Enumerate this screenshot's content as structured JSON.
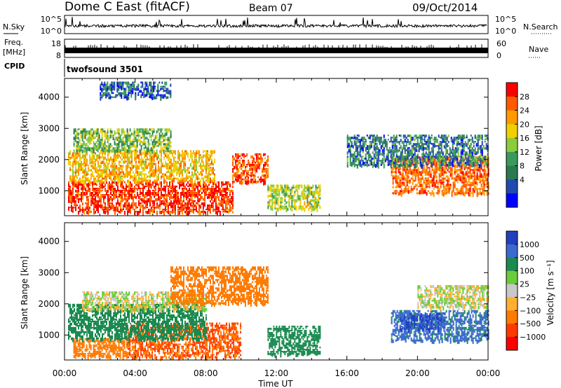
{
  "header": {
    "station": "Dome C East (fitACF)",
    "beam": "Beam 07",
    "date": "09/Oct/2014"
  },
  "summary_panels": {
    "nsky_label": "N.Sky",
    "nsky_ticks": [
      "10^5",
      "10^0"
    ],
    "nsearch_label": "N.Search",
    "nsearch_ticks": [
      "10^5",
      "10^0"
    ],
    "freq_label_line1": "Freq.",
    "freq_label_line2": "[MHz]",
    "freq_ticks": [
      "18",
      "8"
    ],
    "nave_label": "Nave",
    "nave_ticks": [
      "60",
      "0"
    ],
    "cpid_label": "CPID",
    "cpid_value": "twofsound 3501"
  },
  "chart_data": [
    {
      "type": "heatmap",
      "name": "power-panel",
      "ylabel": "Slant Range [km]",
      "ylim": [
        200,
        4600
      ],
      "yticks": [
        1000,
        2000,
        3000,
        4000
      ],
      "xlim": [
        0,
        24
      ],
      "colorbar": {
        "label": "Power [dB]",
        "ticks": [
          "28",
          "24",
          "20",
          "16",
          "12",
          "8",
          "4"
        ],
        "colors": [
          "#ff0000",
          "#ff5a00",
          "#ff9a00",
          "#f0d000",
          "#8ccc3a",
          "#3a9a5a",
          "#2a7a50",
          "#204ab0",
          "#0000ff"
        ]
      },
      "regions": [
        {
          "t": [
            0.2,
            9.5
          ],
          "r": [
            300,
            1300
          ],
          "level": 26
        },
        {
          "t": [
            0.2,
            8.5
          ],
          "r": [
            1300,
            2300
          ],
          "level": 18
        },
        {
          "t": [
            0.5,
            6.0
          ],
          "r": [
            2300,
            3000
          ],
          "level": 11
        },
        {
          "t": [
            9.5,
            11.5
          ],
          "r": [
            1300,
            2200
          ],
          "level": 24
        },
        {
          "t": [
            11.5,
            14.5
          ],
          "r": [
            400,
            1200
          ],
          "level": 14
        },
        {
          "t": [
            18.5,
            24.0
          ],
          "r": [
            900,
            2100
          ],
          "level": 23
        },
        {
          "t": [
            16.0,
            24.0
          ],
          "r": [
            1800,
            2800
          ],
          "level": 7
        },
        {
          "t": [
            2.0,
            6.0
          ],
          "r": [
            4000,
            4500
          ],
          "level": 6
        }
      ]
    },
    {
      "type": "heatmap",
      "name": "velocity-panel",
      "ylabel": "Slant Range [km]",
      "ylim": [
        200,
        4600
      ],
      "yticks": [
        1000,
        2000,
        3000,
        4000
      ],
      "xlim": [
        0,
        24
      ],
      "colorbar": {
        "label": "Velocity [m s⁻¹]",
        "ticks": [
          "1000",
          "500",
          "100",
          "25",
          "−25",
          "−100",
          "−500",
          "−1000"
        ],
        "colors": [
          "#2040c0",
          "#3a6ad0",
          "#1a8a50",
          "#6acc3a",
          "#c8c8c8",
          "#ffb030",
          "#ff7a00",
          "#ff3a00",
          "#ff0000"
        ]
      },
      "regions": [
        {
          "t": [
            0.5,
            3.5
          ],
          "r": [
            300,
            900
          ],
          "level": -200
        },
        {
          "t": [
            3.5,
            10.0
          ],
          "r": [
            300,
            1400
          ],
          "level": -300
        },
        {
          "t": [
            0.2,
            8.0
          ],
          "r": [
            900,
            2000
          ],
          "level": 150
        },
        {
          "t": [
            1.0,
            8.0
          ],
          "r": [
            1800,
            2400
          ],
          "level": 0
        },
        {
          "t": [
            6.0,
            11.5
          ],
          "r": [
            2000,
            3200
          ],
          "level": -150
        },
        {
          "t": [
            11.5,
            14.5
          ],
          "r": [
            400,
            1300
          ],
          "level": 120
        },
        {
          "t": [
            18.5,
            24.0
          ],
          "r": [
            800,
            1800
          ],
          "level": 400
        },
        {
          "t": [
            19.0,
            21.5
          ],
          "r": [
            1200,
            1700
          ],
          "level": 900
        },
        {
          "t": [
            20.0,
            24.0
          ],
          "r": [
            1900,
            2600
          ],
          "level": 0
        }
      ]
    }
  ],
  "time_axis": {
    "label": "Time UT",
    "ticks": [
      "00:00",
      "04:00",
      "08:00",
      "12:00",
      "16:00",
      "20:00",
      "00:00"
    ]
  }
}
